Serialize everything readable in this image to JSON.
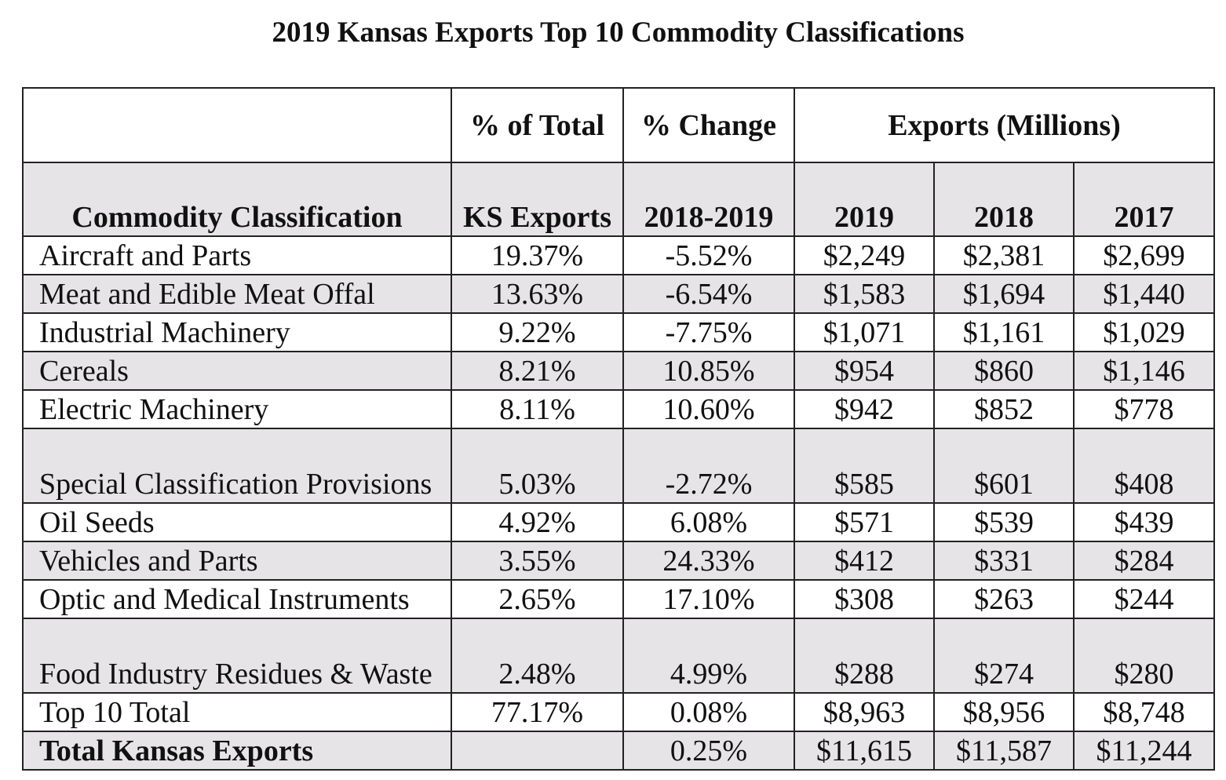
{
  "title": "2019 Kansas Exports Top 10 Commodity Classifications",
  "headers": {
    "pct_total_top": "% of Total",
    "pct_total_bottom": "KS Exports",
    "pct_change_top": "% Change",
    "pct_change_bottom": "2018-2019",
    "exports_group": "Exports (Millions)",
    "commodity": "Commodity Classification",
    "year_2019": "2019",
    "year_2018": "2018",
    "year_2017": "2017"
  },
  "rows": [
    {
      "name": "Aircraft and Parts",
      "pct_total": "19.37%",
      "pct_change": "-5.52%",
      "y2019": "$2,249",
      "y2018": "$2,381",
      "y2017": "$2,699"
    },
    {
      "name": "Meat and Edible Meat Offal",
      "pct_total": "13.63%",
      "pct_change": "-6.54%",
      "y2019": "$1,583",
      "y2018": "$1,694",
      "y2017": "$1,440"
    },
    {
      "name": "Industrial Machinery",
      "pct_total": "9.22%",
      "pct_change": "-7.75%",
      "y2019": "$1,071",
      "y2018": "$1,161",
      "y2017": "$1,029"
    },
    {
      "name": "Cereals",
      "pct_total": "8.21%",
      "pct_change": "10.85%",
      "y2019": "$954",
      "y2018": "$860",
      "y2017": "$1,146"
    },
    {
      "name": "Electric Machinery",
      "pct_total": "8.11%",
      "pct_change": "10.60%",
      "y2019": "$942",
      "y2018": "$852",
      "y2017": "$778"
    },
    {
      "name": "Special Classification Provisions",
      "pct_total": "5.03%",
      "pct_change": "-2.72%",
      "y2019": "$585",
      "y2018": "$601",
      "y2017": "$408"
    },
    {
      "name": "Oil Seeds",
      "pct_total": "4.92%",
      "pct_change": "6.08%",
      "y2019": "$571",
      "y2018": "$539",
      "y2017": "$439"
    },
    {
      "name": "Vehicles and Parts",
      "pct_total": "3.55%",
      "pct_change": "24.33%",
      "y2019": "$412",
      "y2018": "$331",
      "y2017": "$284"
    },
    {
      "name": "Optic and Medical Instruments",
      "pct_total": "2.65%",
      "pct_change": "17.10%",
      "y2019": "$308",
      "y2018": "$263",
      "y2017": "$244"
    },
    {
      "name": "Food Industry Residues & Waste",
      "pct_total": "2.48%",
      "pct_change": "4.99%",
      "y2019": "$288",
      "y2018": "$274",
      "y2017": "$280"
    },
    {
      "name": "Top 10 Total",
      "pct_total": "77.17%",
      "pct_change": "0.08%",
      "y2019": "$8,963",
      "y2018": "$8,956",
      "y2017": "$8,748"
    },
    {
      "name": "Total Kansas Exports",
      "pct_total": "",
      "pct_change": "0.25%",
      "y2019": "$11,615",
      "y2018": "$11,587",
      "y2017": "$11,244"
    }
  ]
}
